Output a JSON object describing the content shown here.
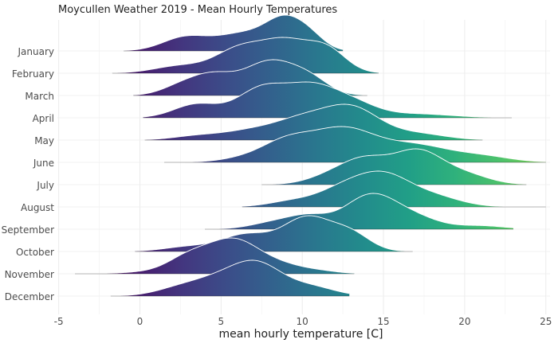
{
  "chart_data": {
    "type": "ridgeline",
    "title": "Moycullen Weather 2019 - Mean Hourly Temperatures",
    "xlabel": "mean hourly temperature [C]",
    "ylabel": "",
    "xlim": [
      -5,
      25
    ],
    "xticks": [
      -5,
      0,
      5,
      10,
      15,
      20,
      25
    ],
    "grid": true,
    "legend": "none",
    "color_scale": "viridis (by temperature)",
    "categories": [
      "January",
      "February",
      "March",
      "April",
      "May",
      "June",
      "July",
      "August",
      "September",
      "October",
      "November",
      "December"
    ],
    "series": [
      {
        "name": "January",
        "min": -1.0,
        "max": 12.5,
        "peaks": [
          [
            2.8,
            0.45,
            1.4
          ],
          [
            6.3,
            0.55,
            1.6
          ],
          [
            9.0,
            1.0,
            1.2
          ],
          [
            10.6,
            0.3,
            0.9
          ]
        ]
      },
      {
        "name": "February",
        "min": -1.7,
        "max": 14.7,
        "peaks": [
          [
            2.5,
            0.25,
            1.6
          ],
          [
            6.2,
            0.85,
            1.5
          ],
          [
            9.0,
            1.0,
            1.4
          ],
          [
            11.5,
            0.8,
            1.2
          ]
        ]
      },
      {
        "name": "March",
        "min": -0.4,
        "max": 14.0,
        "peaks": [
          [
            2.5,
            0.25,
            1.2
          ],
          [
            4.5,
            0.55,
            1.3
          ],
          [
            8.0,
            1.0,
            1.6
          ],
          [
            10.5,
            0.4,
            1.2
          ]
        ]
      },
      {
        "name": "April",
        "min": 0.2,
        "max": 22.9,
        "peaks": [
          [
            3.5,
            0.42,
            1.4
          ],
          [
            7.5,
            0.9,
            1.5
          ],
          [
            10.5,
            0.88,
            1.5
          ],
          [
            13.0,
            0.45,
            1.5
          ],
          [
            17.0,
            0.12,
            2.2
          ]
        ]
      },
      {
        "name": "May",
        "min": 0.3,
        "max": 21.1,
        "peaks": [
          [
            3.5,
            0.12,
            1.5
          ],
          [
            7.0,
            0.3,
            1.8
          ],
          [
            10.0,
            0.55,
            1.6
          ],
          [
            13.0,
            1.0,
            1.7
          ],
          [
            17.0,
            0.2,
            1.8
          ]
        ]
      },
      {
        "name": "June",
        "min": 1.5,
        "max": 25.0,
        "peaks": [
          [
            6.5,
            0.12,
            1.5
          ],
          [
            9.0,
            0.55,
            1.5
          ],
          [
            12.5,
            1.0,
            2.0
          ],
          [
            17.0,
            0.48,
            2.0
          ],
          [
            21.0,
            0.18,
            1.8
          ]
        ]
      },
      {
        "name": "July",
        "min": 7.5,
        "max": 23.8,
        "peaks": [
          [
            12.0,
            0.3,
            1.5
          ],
          [
            14.0,
            0.65,
            1.4
          ],
          [
            17.1,
            1.0,
            1.5
          ],
          [
            20.0,
            0.3,
            1.5
          ]
        ]
      },
      {
        "name": "August",
        "min": 6.3,
        "max": 25.0,
        "peaks": [
          [
            9.5,
            0.2,
            1.5
          ],
          [
            12.5,
            0.55,
            1.5
          ],
          [
            15.0,
            1.0,
            1.6
          ],
          [
            18.0,
            0.35,
            1.7
          ]
        ]
      },
      {
        "name": "September",
        "min": 4.0,
        "max": 23.0,
        "peaks": [
          [
            8.5,
            0.22,
            1.5
          ],
          [
            10.5,
            0.3,
            1.2
          ],
          [
            14.2,
            1.0,
            1.6
          ],
          [
            17.0,
            0.3,
            1.5
          ],
          [
            21.0,
            0.1,
            1.5
          ]
        ]
      },
      {
        "name": "October",
        "min": -0.3,
        "max": 16.8,
        "peaks": [
          [
            3.0,
            0.1,
            1.5
          ],
          [
            6.5,
            0.35,
            1.5
          ],
          [
            10.3,
            0.72,
            1.5
          ],
          [
            13.0,
            0.35,
            1.2
          ]
        ]
      },
      {
        "name": "November",
        "min": -4.0,
        "max": 13.2,
        "peaks": [
          [
            0.5,
            0.05,
            1.5
          ],
          [
            3.0,
            0.45,
            1.3
          ],
          [
            5.8,
            1.0,
            1.6
          ],
          [
            8.8,
            0.2,
            1.3
          ],
          [
            11.0,
            0.08,
            1.2
          ]
        ]
      },
      {
        "name": "December",
        "min": -1.8,
        "max": 12.9,
        "peaks": [
          [
            2.5,
            0.25,
            1.5
          ],
          [
            5.0,
            0.5,
            1.6
          ],
          [
            7.3,
            0.95,
            1.5
          ],
          [
            10.5,
            0.3,
            1.5
          ]
        ]
      }
    ]
  }
}
